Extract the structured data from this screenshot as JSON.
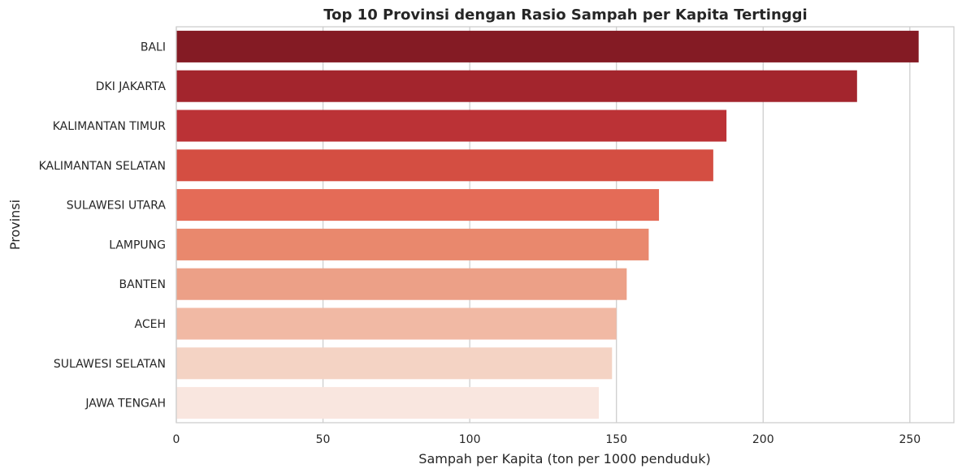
{
  "chart_data": {
    "type": "bar",
    "orientation": "horizontal",
    "title": "Top 10 Provinsi dengan Rasio Sampah per Kapita Tertinggi",
    "xlabel": "Sampah per Kapita (ton per 1000 penduduk)",
    "ylabel": "Provinsi",
    "xlim": [
      0,
      265
    ],
    "xticks": [
      0,
      50,
      100,
      150,
      200,
      250
    ],
    "grid": "vertical",
    "categories": [
      "BALI",
      "DKI JAKARTA",
      "KALIMANTAN TIMUR",
      "KALIMANTAN SELATAN",
      "SULAWESI UTARA",
      "LAMPUNG",
      "BANTEN",
      "ACEH",
      "SULAWESI SELATAN",
      "JAWA TENGAH"
    ],
    "values": [
      253,
      232,
      187.5,
      183,
      164.5,
      161,
      153.5,
      150,
      148.5,
      144
    ],
    "colors": [
      "#841b24",
      "#a3252d",
      "#bb3236",
      "#d44e42",
      "#e46b57",
      "#e9886d",
      "#eca087",
      "#f1b9a4",
      "#f4d3c4",
      "#f9e6df"
    ]
  }
}
